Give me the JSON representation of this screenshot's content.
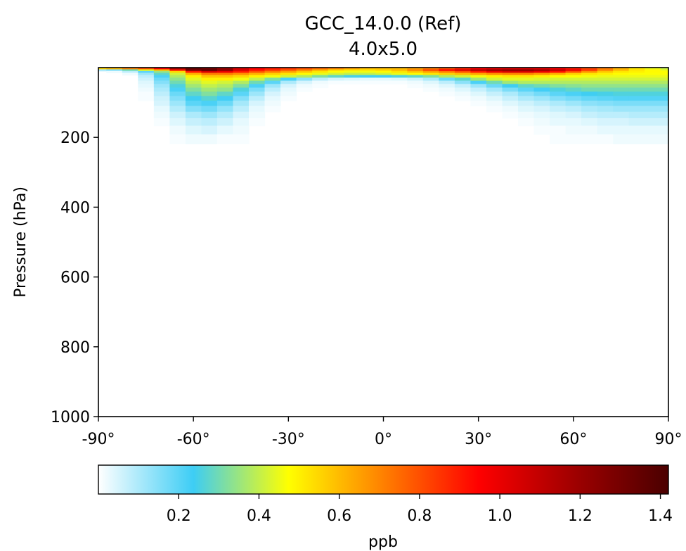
{
  "chart_data": {
    "type": "heatmap",
    "title": "GCC_14.0.0 (Ref)",
    "subtitle": "4.0x5.0",
    "ylabel": "Pressure (hPa)",
    "xlabel": "",
    "xlim": [
      -90,
      90
    ],
    "ylim": [
      1000,
      0
    ],
    "x_ticks": [
      {
        "value": -90,
        "label": "-90°"
      },
      {
        "value": -60,
        "label": "-60°"
      },
      {
        "value": -30,
        "label": "-30°"
      },
      {
        "value": 0,
        "label": "0°"
      },
      {
        "value": 30,
        "label": "30°"
      },
      {
        "value": 60,
        "label": "60°"
      },
      {
        "value": 90,
        "label": "90°"
      }
    ],
    "y_ticks": [
      {
        "value": 200,
        "label": "200"
      },
      {
        "value": 400,
        "label": "400"
      },
      {
        "value": 600,
        "label": "600"
      },
      {
        "value": 800,
        "label": "800"
      },
      {
        "value": 1000,
        "label": "1000"
      }
    ],
    "colorbar": {
      "label": "ppb",
      "range": [
        0.0,
        1.42
      ],
      "ticks": [
        {
          "value": 0.2,
          "label": "0.2"
        },
        {
          "value": 0.4,
          "label": "0.4"
        },
        {
          "value": 0.6,
          "label": "0.6"
        },
        {
          "value": 0.8,
          "label": "0.8"
        },
        {
          "value": 1.0,
          "label": "1.0"
        },
        {
          "value": 1.2,
          "label": "1.2"
        },
        {
          "value": 1.4,
          "label": "1.4"
        }
      ],
      "colormap": [
        "#ffffff",
        "#3dcdf5",
        "#ffff00",
        "#ff8000",
        "#ff0000",
        "#a00000",
        "#4a0000"
      ]
    },
    "pressure_levels_hPa": [
      3,
      7,
      12,
      18,
      25,
      33,
      42,
      52,
      63,
      75,
      88,
      102,
      118,
      135,
      155,
      178,
      205
    ],
    "latitudes_deg": [
      -90,
      -85,
      -80,
      -75,
      -70,
      -65,
      -60,
      -55,
      -50,
      -45,
      -40,
      -35,
      -30,
      -25,
      -20,
      -15,
      -10,
      -5,
      0,
      5,
      10,
      15,
      20,
      25,
      30,
      35,
      40,
      45,
      50,
      55,
      60,
      65,
      70,
      75,
      80,
      85,
      90
    ],
    "values_ppb_by_level": [
      [
        0.55,
        0.6,
        0.7,
        0.8,
        0.95,
        1.2,
        1.35,
        1.3,
        1.2,
        1.05,
        0.95,
        0.9,
        0.85,
        0.8,
        0.75,
        0.7,
        0.65,
        0.6,
        0.6,
        0.6,
        0.65,
        0.72,
        0.8,
        0.88,
        0.95,
        1.0,
        1.02,
        1.02,
        1.0,
        0.95,
        0.9,
        0.82,
        0.72,
        0.62,
        0.52,
        0.45,
        0.4
      ],
      [
        0.1,
        0.15,
        0.3,
        0.45,
        0.6,
        0.9,
        1.3,
        1.38,
        1.25,
        1.05,
        0.92,
        0.85,
        0.78,
        0.7,
        0.62,
        0.55,
        0.52,
        0.52,
        0.55,
        0.6,
        0.7,
        0.82,
        0.95,
        1.05,
        1.15,
        1.22,
        1.25,
        1.25,
        1.2,
        1.12,
        1.0,
        0.85,
        0.7,
        0.6,
        0.52,
        0.48,
        0.45
      ],
      [
        0.0,
        0.02,
        0.08,
        0.2,
        0.35,
        0.55,
        0.9,
        1.05,
        1.0,
        0.9,
        0.8,
        0.72,
        0.65,
        0.58,
        0.52,
        0.48,
        0.46,
        0.46,
        0.48,
        0.52,
        0.58,
        0.65,
        0.72,
        0.8,
        0.9,
        1.0,
        1.05,
        1.05,
        1.0,
        0.92,
        0.8,
        0.68,
        0.58,
        0.52,
        0.5,
        0.48,
        0.47
      ],
      [
        0.0,
        0.0,
        0.02,
        0.12,
        0.28,
        0.42,
        0.62,
        0.72,
        0.72,
        0.68,
        0.62,
        0.56,
        0.52,
        0.48,
        0.45,
        0.42,
        0.4,
        0.4,
        0.42,
        0.45,
        0.48,
        0.52,
        0.56,
        0.6,
        0.64,
        0.68,
        0.7,
        0.7,
        0.66,
        0.62,
        0.56,
        0.52,
        0.5,
        0.48,
        0.47,
        0.47,
        0.47
      ],
      [
        0.0,
        0.0,
        0.0,
        0.08,
        0.22,
        0.38,
        0.5,
        0.58,
        0.58,
        0.55,
        0.5,
        0.46,
        0.42,
        0.38,
        0.32,
        0.28,
        0.25,
        0.24,
        0.24,
        0.26,
        0.28,
        0.32,
        0.38,
        0.42,
        0.46,
        0.5,
        0.52,
        0.52,
        0.5,
        0.48,
        0.47,
        0.46,
        0.45,
        0.45,
        0.45,
        0.45,
        0.45
      ],
      [
        0.0,
        0.0,
        0.0,
        0.06,
        0.18,
        0.34,
        0.44,
        0.5,
        0.5,
        0.46,
        0.4,
        0.32,
        0.22,
        0.14,
        0.08,
        0.05,
        0.04,
        0.03,
        0.03,
        0.04,
        0.06,
        0.1,
        0.18,
        0.28,
        0.36,
        0.42,
        0.44,
        0.44,
        0.43,
        0.42,
        0.42,
        0.42,
        0.42,
        0.42,
        0.42,
        0.42,
        0.42
      ],
      [
        0.0,
        0.0,
        0.0,
        0.04,
        0.15,
        0.3,
        0.4,
        0.44,
        0.42,
        0.38,
        0.3,
        0.2,
        0.1,
        0.05,
        0.02,
        0.01,
        0.01,
        0.01,
        0.01,
        0.01,
        0.02,
        0.04,
        0.08,
        0.14,
        0.22,
        0.3,
        0.36,
        0.38,
        0.38,
        0.38,
        0.38,
        0.38,
        0.38,
        0.38,
        0.38,
        0.38,
        0.38
      ],
      [
        0.0,
        0.0,
        0.0,
        0.03,
        0.12,
        0.26,
        0.36,
        0.4,
        0.38,
        0.32,
        0.22,
        0.12,
        0.05,
        0.02,
        0.01,
        0.0,
        0.0,
        0.0,
        0.0,
        0.0,
        0.01,
        0.02,
        0.04,
        0.07,
        0.12,
        0.18,
        0.24,
        0.28,
        0.3,
        0.32,
        0.33,
        0.34,
        0.34,
        0.34,
        0.34,
        0.34,
        0.34
      ],
      [
        0.0,
        0.0,
        0.0,
        0.02,
        0.1,
        0.22,
        0.32,
        0.36,
        0.34,
        0.26,
        0.16,
        0.08,
        0.03,
        0.01,
        0.0,
        0.0,
        0.0,
        0.0,
        0.0,
        0.0,
        0.0,
        0.01,
        0.02,
        0.04,
        0.07,
        0.11,
        0.16,
        0.2,
        0.23,
        0.26,
        0.28,
        0.3,
        0.3,
        0.3,
        0.3,
        0.3,
        0.3
      ],
      [
        0.0,
        0.0,
        0.0,
        0.01,
        0.08,
        0.18,
        0.28,
        0.32,
        0.28,
        0.2,
        0.12,
        0.05,
        0.02,
        0.0,
        0.0,
        0.0,
        0.0,
        0.0,
        0.0,
        0.0,
        0.0,
        0.0,
        0.01,
        0.02,
        0.04,
        0.07,
        0.1,
        0.14,
        0.17,
        0.2,
        0.22,
        0.24,
        0.25,
        0.26,
        0.26,
        0.26,
        0.26
      ],
      [
        0.0,
        0.0,
        0.0,
        0.01,
        0.06,
        0.15,
        0.24,
        0.27,
        0.23,
        0.15,
        0.08,
        0.03,
        0.01,
        0.0,
        0.0,
        0.0,
        0.0,
        0.0,
        0.0,
        0.0,
        0.0,
        0.0,
        0.0,
        0.01,
        0.02,
        0.04,
        0.07,
        0.1,
        0.12,
        0.15,
        0.17,
        0.19,
        0.2,
        0.21,
        0.21,
        0.21,
        0.21
      ],
      [
        0.0,
        0.0,
        0.0,
        0.0,
        0.05,
        0.12,
        0.2,
        0.22,
        0.18,
        0.11,
        0.05,
        0.02,
        0.0,
        0.0,
        0.0,
        0.0,
        0.0,
        0.0,
        0.0,
        0.0,
        0.0,
        0.0,
        0.0,
        0.0,
        0.01,
        0.02,
        0.04,
        0.06,
        0.08,
        0.1,
        0.12,
        0.14,
        0.15,
        0.16,
        0.16,
        0.16,
        0.16
      ],
      [
        0.0,
        0.0,
        0.0,
        0.0,
        0.03,
        0.09,
        0.15,
        0.17,
        0.13,
        0.08,
        0.03,
        0.01,
        0.0,
        0.0,
        0.0,
        0.0,
        0.0,
        0.0,
        0.0,
        0.0,
        0.0,
        0.0,
        0.0,
        0.0,
        0.0,
        0.01,
        0.02,
        0.04,
        0.05,
        0.07,
        0.08,
        0.1,
        0.11,
        0.12,
        0.12,
        0.12,
        0.12
      ],
      [
        0.0,
        0.0,
        0.0,
        0.0,
        0.02,
        0.06,
        0.1,
        0.12,
        0.09,
        0.05,
        0.02,
        0.0,
        0.0,
        0.0,
        0.0,
        0.0,
        0.0,
        0.0,
        0.0,
        0.0,
        0.0,
        0.0,
        0.0,
        0.0,
        0.0,
        0.0,
        0.01,
        0.02,
        0.03,
        0.04,
        0.05,
        0.07,
        0.08,
        0.08,
        0.09,
        0.09,
        0.09
      ],
      [
        0.0,
        0.0,
        0.0,
        0.0,
        0.01,
        0.04,
        0.07,
        0.08,
        0.06,
        0.03,
        0.01,
        0.0,
        0.0,
        0.0,
        0.0,
        0.0,
        0.0,
        0.0,
        0.0,
        0.0,
        0.0,
        0.0,
        0.0,
        0.0,
        0.0,
        0.0,
        0.0,
        0.01,
        0.02,
        0.03,
        0.03,
        0.04,
        0.05,
        0.05,
        0.06,
        0.06,
        0.06
      ],
      [
        0.0,
        0.0,
        0.0,
        0.0,
        0.0,
        0.02,
        0.04,
        0.05,
        0.03,
        0.02,
        0.0,
        0.0,
        0.0,
        0.0,
        0.0,
        0.0,
        0.0,
        0.0,
        0.0,
        0.0,
        0.0,
        0.0,
        0.0,
        0.0,
        0.0,
        0.0,
        0.0,
        0.0,
        0.01,
        0.01,
        0.02,
        0.02,
        0.03,
        0.03,
        0.03,
        0.03,
        0.03
      ],
      [
        0.0,
        0.0,
        0.0,
        0.0,
        0.0,
        0.01,
        0.02,
        0.02,
        0.01,
        0.01,
        0.0,
        0.0,
        0.0,
        0.0,
        0.0,
        0.0,
        0.0,
        0.0,
        0.0,
        0.0,
        0.0,
        0.0,
        0.0,
        0.0,
        0.0,
        0.0,
        0.0,
        0.0,
        0.0,
        0.01,
        0.01,
        0.01,
        0.01,
        0.02,
        0.02,
        0.02,
        0.02
      ]
    ]
  }
}
